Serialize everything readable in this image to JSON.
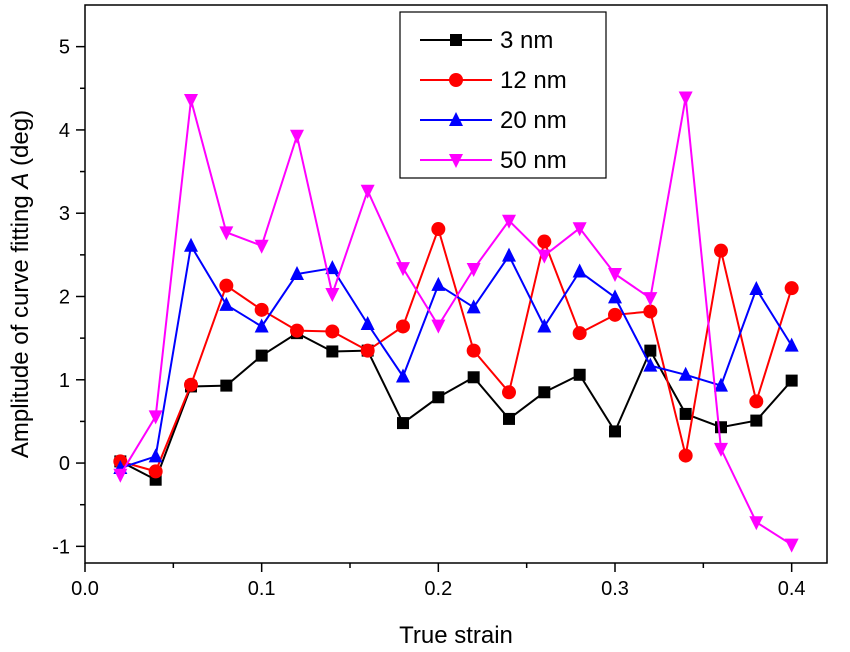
{
  "chart_data": {
    "type": "line",
    "xlabel": "True strain",
    "ylabel": {
      "prefix": "Amplitude of curve fitting ",
      "italic": "A",
      "suffix": " (deg)"
    },
    "xlim": [
      0.0,
      0.42
    ],
    "ylim": [
      -1.2,
      5.5
    ],
    "x_ticks": [
      "0.0",
      "0.1",
      "0.2",
      "0.3",
      "0.4"
    ],
    "x_tick_values": [
      0.0,
      0.1,
      0.2,
      0.3,
      0.4
    ],
    "y_ticks": [
      "-1",
      "0",
      "1",
      "2",
      "3",
      "4",
      "5"
    ],
    "y_tick_values": [
      -1,
      0,
      1,
      2,
      3,
      4,
      5
    ],
    "grid": false,
    "legend_position": "top-center",
    "x": [
      0.02,
      0.04,
      0.06,
      0.08,
      0.1,
      0.12,
      0.14,
      0.16,
      0.18,
      0.2,
      0.22,
      0.24,
      0.26,
      0.28,
      0.3,
      0.32,
      0.34,
      0.36,
      0.38,
      0.4
    ],
    "series": [
      {
        "name": "3 nm",
        "color": "#000000",
        "marker": "square",
        "values": [
          0.02,
          -0.2,
          0.92,
          0.93,
          1.29,
          1.56,
          1.34,
          1.35,
          0.48,
          0.79,
          1.03,
          0.53,
          0.85,
          1.06,
          0.38,
          1.35,
          0.59,
          0.43,
          0.51,
          0.99
        ]
      },
      {
        "name": "12 nm",
        "color": "#ff0000",
        "marker": "circle",
        "values": [
          0.02,
          -0.1,
          0.94,
          2.13,
          1.84,
          1.59,
          1.58,
          1.35,
          1.64,
          2.81,
          1.35,
          0.85,
          2.66,
          1.56,
          1.78,
          1.82,
          0.09,
          2.55,
          0.74,
          2.1
        ]
      },
      {
        "name": "20 nm",
        "color": "#0000ff",
        "marker": "triangle-up",
        "values": [
          -0.06,
          0.08,
          2.61,
          1.9,
          1.64,
          2.27,
          2.34,
          1.67,
          1.04,
          2.14,
          1.87,
          2.49,
          1.64,
          2.3,
          1.99,
          1.17,
          1.06,
          0.93,
          2.09,
          1.41
        ]
      },
      {
        "name": "50 nm",
        "color": "#ff00ff",
        "marker": "triangle-down",
        "values": [
          -0.14,
          0.56,
          4.36,
          2.77,
          2.61,
          3.93,
          2.03,
          3.27,
          2.34,
          1.65,
          2.33,
          2.91,
          2.49,
          2.82,
          2.27,
          1.98,
          4.39,
          0.17,
          -0.71,
          -0.98
        ]
      }
    ]
  }
}
